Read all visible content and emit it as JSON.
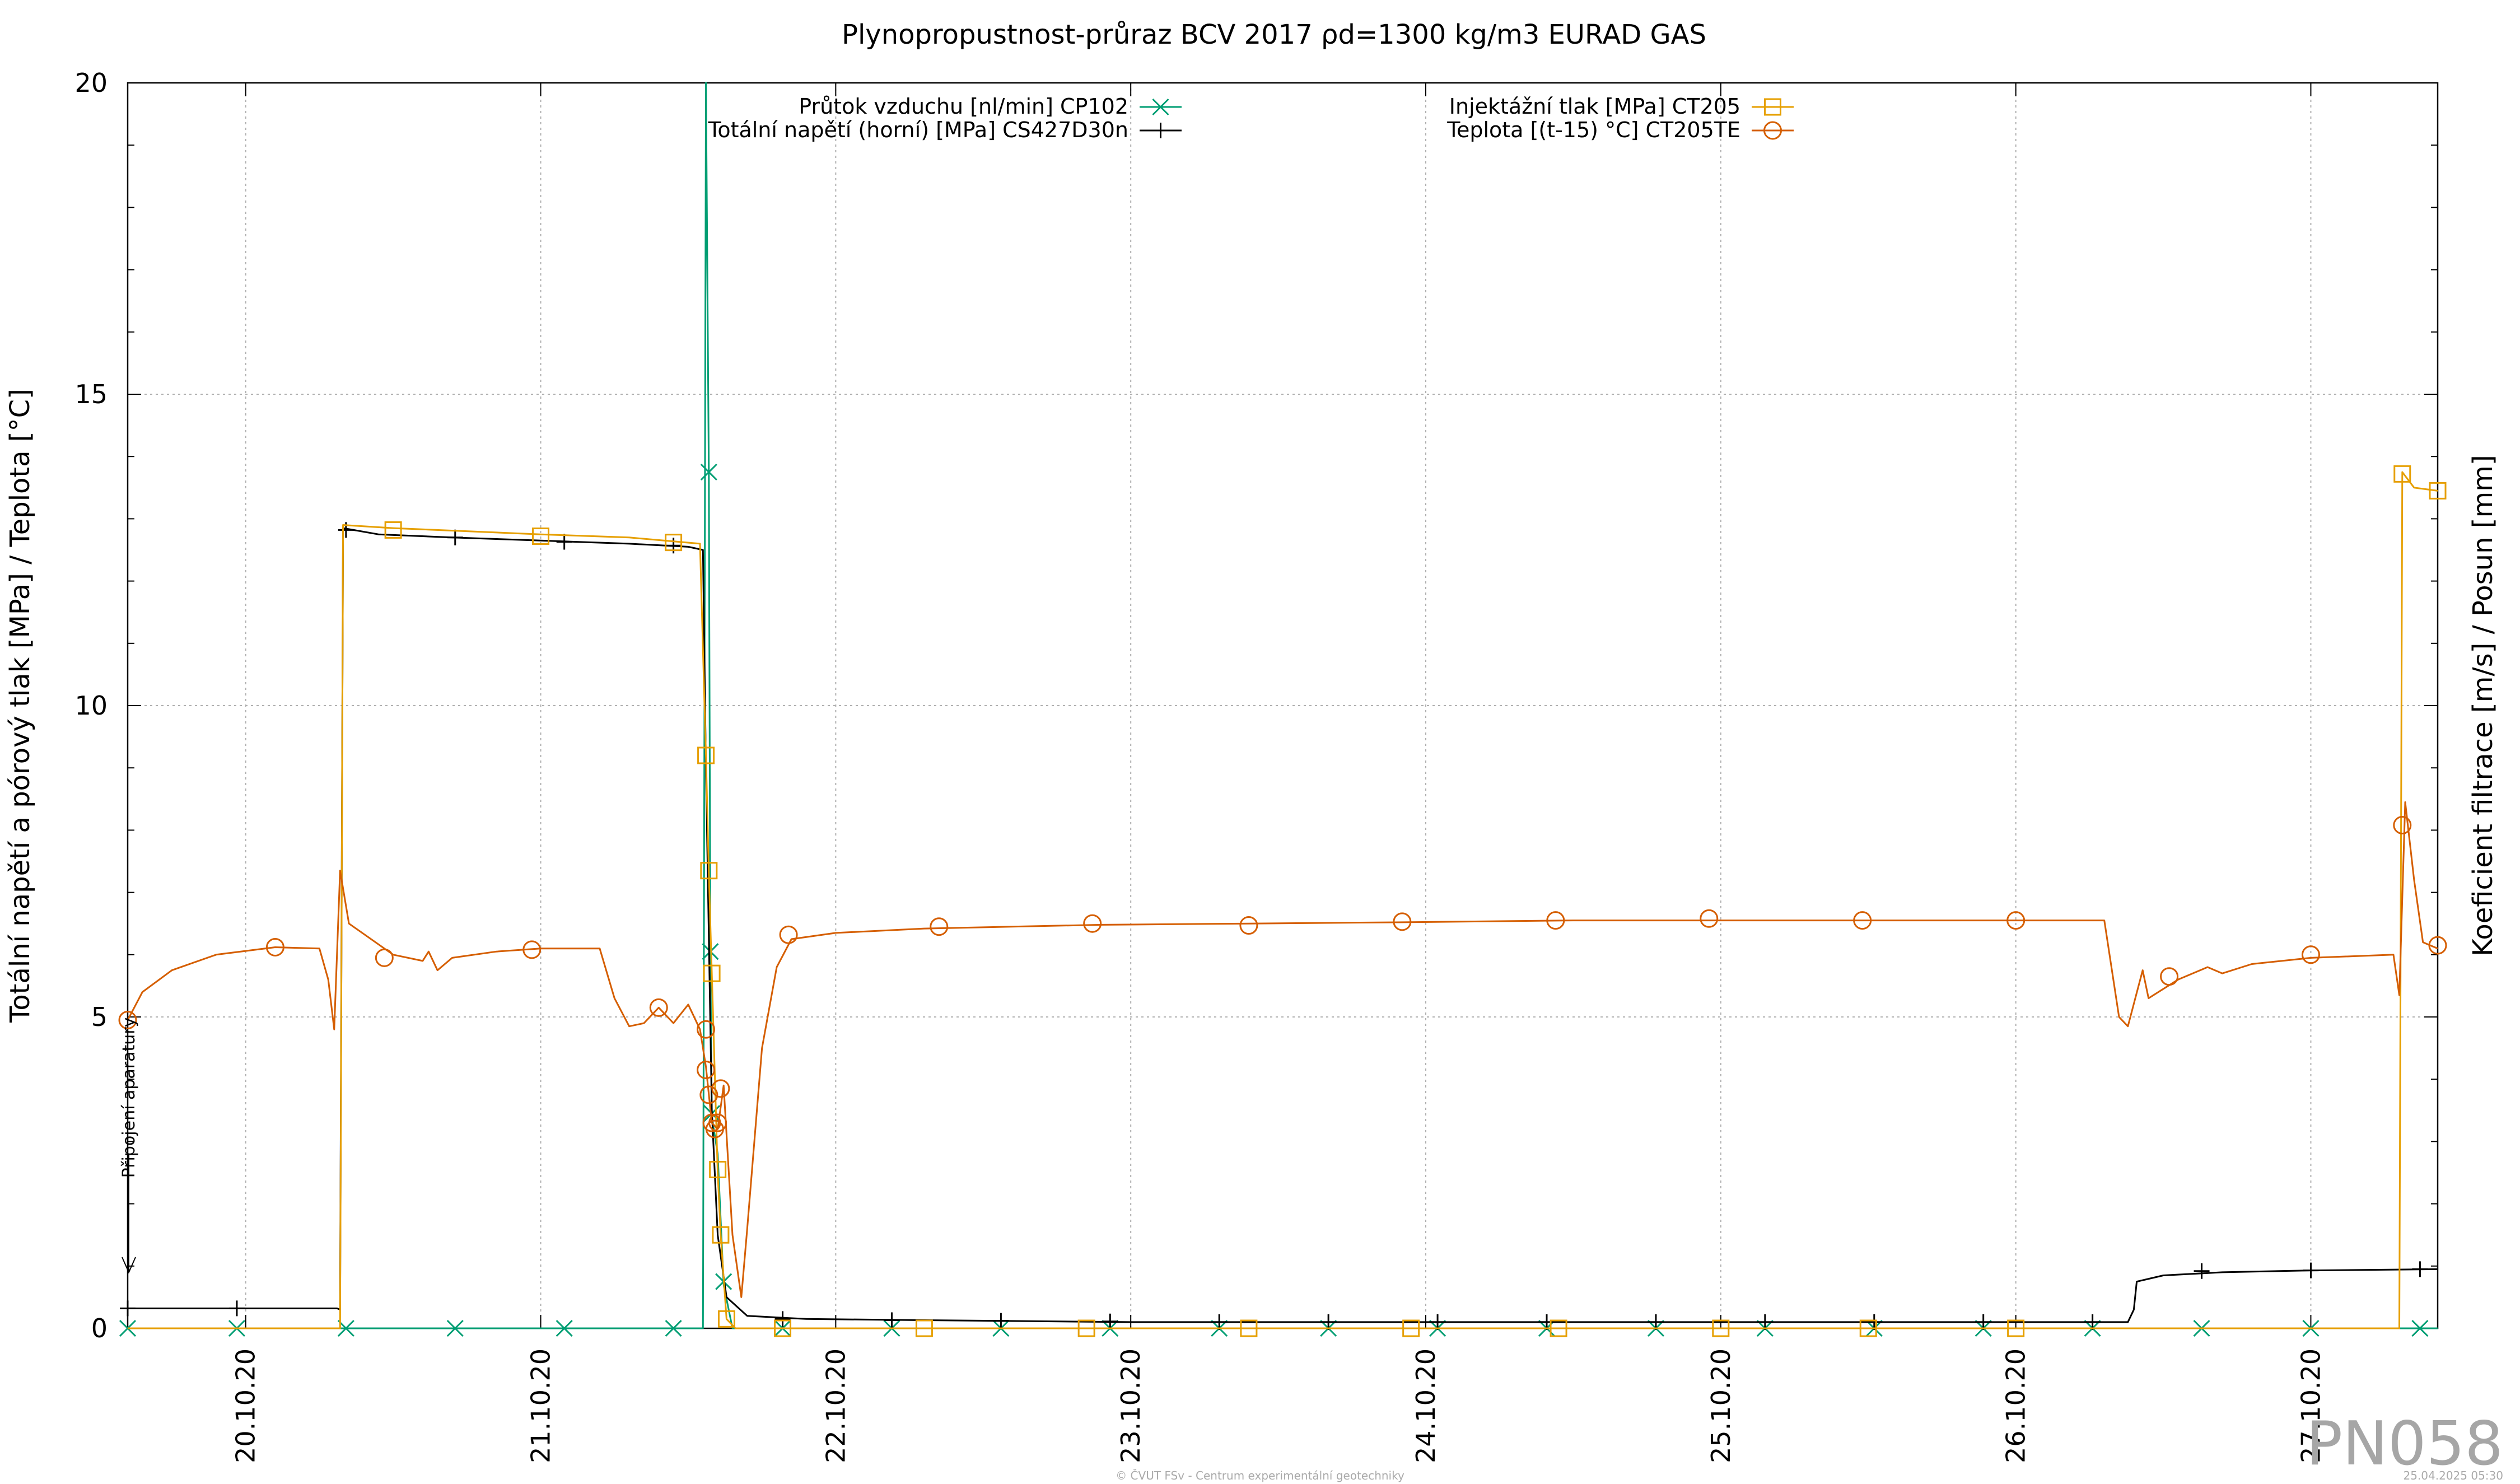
{
  "chart_data": {
    "type": "line",
    "title": "Plynopropustnost-průraz BCV 2017 ρd=1300 kg/m3 EURAD GAS",
    "ylabel": "Totální napětí a pórový tlak [MPa] / Teplota [°C]",
    "y2label": "Koeficient filtrace [m/s] / Posun [mm]",
    "ylim": [
      0,
      20
    ],
    "yticks": [
      "0",
      "5",
      "10",
      "15",
      "20"
    ],
    "xlim": [
      19.6,
      27.43
    ],
    "xticks": [
      {
        "x": 20.0,
        "label": "20.10.20"
      },
      {
        "x": 21.0,
        "label": "21.10.20"
      },
      {
        "x": 22.0,
        "label": "22.10.20"
      },
      {
        "x": 23.0,
        "label": "23.10.20"
      },
      {
        "x": 24.0,
        "label": "24.10.20"
      },
      {
        "x": 25.0,
        "label": "25.10.20"
      },
      {
        "x": 26.0,
        "label": "26.10.20"
      },
      {
        "x": 27.0,
        "label": "27.10.20"
      }
    ],
    "grid": true,
    "legend_position": "top",
    "annotation": "Připojení aparatury",
    "series": [
      {
        "name": "Průtok vzduchu [nl/min] CP102",
        "color": "#009e73",
        "marker": "x",
        "points": [
          [
            19.6,
            0
          ],
          [
            19.97,
            0
          ],
          [
            20.34,
            0
          ],
          [
            20.71,
            0
          ],
          [
            21.08,
            0
          ],
          [
            21.45,
            0
          ],
          [
            21.55,
            0
          ],
          [
            21.56,
            20
          ],
          [
            21.57,
            13.7
          ],
          [
            21.575,
            6.0
          ],
          [
            21.58,
            3.4
          ],
          [
            21.6,
            2.8
          ],
          [
            21.62,
            0.7
          ],
          [
            21.65,
            0
          ],
          [
            21.82,
            0
          ],
          [
            22.19,
            0
          ],
          [
            22.56,
            0
          ],
          [
            22.93,
            0
          ],
          [
            23.3,
            0
          ],
          [
            23.67,
            0
          ],
          [
            24.04,
            0
          ],
          [
            24.41,
            0
          ],
          [
            24.78,
            0
          ],
          [
            25.15,
            0
          ],
          [
            25.52,
            0
          ],
          [
            25.89,
            0
          ],
          [
            26.26,
            0
          ],
          [
            26.63,
            0
          ],
          [
            27.0,
            0
          ],
          [
            27.37,
            0
          ],
          [
            27.43,
            0
          ]
        ],
        "marker_points": [
          [
            19.6,
            0
          ],
          [
            19.97,
            0
          ],
          [
            20.34,
            0
          ],
          [
            20.71,
            0
          ],
          [
            21.08,
            0
          ],
          [
            21.45,
            0
          ],
          [
            21.57,
            13.75
          ],
          [
            21.575,
            6.05
          ],
          [
            21.58,
            3.45
          ],
          [
            21.62,
            0.75
          ],
          [
            21.82,
            0
          ],
          [
            22.19,
            0
          ],
          [
            22.56,
            0
          ],
          [
            22.93,
            0
          ],
          [
            23.3,
            0
          ],
          [
            23.67,
            0
          ],
          [
            24.04,
            0
          ],
          [
            24.41,
            0
          ],
          [
            24.78,
            0
          ],
          [
            25.15,
            0
          ],
          [
            25.52,
            0
          ],
          [
            25.89,
            0
          ],
          [
            26.26,
            0
          ],
          [
            26.63,
            0
          ],
          [
            27.0,
            0
          ],
          [
            27.37,
            0
          ]
        ]
      },
      {
        "name": "Totální napětí (horní) [MPa] CS427D30n",
        "color": "#000000",
        "marker": "+",
        "points": [
          [
            19.6,
            0.32
          ],
          [
            20.31,
            0.32
          ],
          [
            20.32,
            0.3
          ],
          [
            20.33,
            12.85
          ],
          [
            20.45,
            12.75
          ],
          [
            20.7,
            12.7
          ],
          [
            21.0,
            12.65
          ],
          [
            21.3,
            12.6
          ],
          [
            21.5,
            12.55
          ],
          [
            21.55,
            12.5
          ],
          [
            21.56,
            9.0
          ],
          [
            21.58,
            3.5
          ],
          [
            21.6,
            1.5
          ],
          [
            21.63,
            0.5
          ],
          [
            21.7,
            0.2
          ],
          [
            21.9,
            0.15
          ],
          [
            22.3,
            0.13
          ],
          [
            23.0,
            0.1
          ],
          [
            24.0,
            0.1
          ],
          [
            25.0,
            0.1
          ],
          [
            26.0,
            0.1
          ],
          [
            26.38,
            0.1
          ],
          [
            26.4,
            0.3
          ],
          [
            26.41,
            0.75
          ],
          [
            26.5,
            0.85
          ],
          [
            26.7,
            0.9
          ],
          [
            27.0,
            0.93
          ],
          [
            27.43,
            0.95
          ]
        ],
        "marker_points": [
          [
            19.6,
            0.32
          ],
          [
            19.97,
            0.32
          ],
          [
            20.34,
            12.82
          ],
          [
            20.71,
            12.7
          ],
          [
            21.08,
            12.63
          ],
          [
            21.45,
            12.57
          ],
          [
            21.82,
            0.15
          ],
          [
            22.19,
            0.13
          ],
          [
            22.56,
            0.12
          ],
          [
            22.93,
            0.11
          ],
          [
            23.3,
            0.1
          ],
          [
            23.67,
            0.1
          ],
          [
            24.04,
            0.1
          ],
          [
            24.41,
            0.1
          ],
          [
            24.78,
            0.1
          ],
          [
            25.15,
            0.1
          ],
          [
            25.52,
            0.1
          ],
          [
            25.89,
            0.1
          ],
          [
            26.26,
            0.1
          ],
          [
            26.63,
            0.92
          ],
          [
            27.0,
            0.93
          ],
          [
            27.37,
            0.95
          ]
        ]
      },
      {
        "name": "Injektážní tlak [MPa] CT205",
        "color": "#e69f00",
        "marker": "square",
        "points": [
          [
            19.6,
            0
          ],
          [
            20.32,
            0
          ],
          [
            20.33,
            12.9
          ],
          [
            20.5,
            12.85
          ],
          [
            21.0,
            12.75
          ],
          [
            21.3,
            12.7
          ],
          [
            21.54,
            12.6
          ],
          [
            21.56,
            9.2
          ],
          [
            21.57,
            7.3
          ],
          [
            21.58,
            5.7
          ],
          [
            21.6,
            2.5
          ],
          [
            21.61,
            1.5
          ],
          [
            21.63,
            0.15
          ],
          [
            21.66,
            0
          ],
          [
            27.3,
            0
          ],
          [
            27.31,
            13.75
          ],
          [
            27.35,
            13.5
          ],
          [
            27.43,
            13.45
          ]
        ],
        "marker_points": [
          [
            20.5,
            12.82
          ],
          [
            21.0,
            12.72
          ],
          [
            21.45,
            12.62
          ],
          [
            21.56,
            9.2
          ],
          [
            21.57,
            7.35
          ],
          [
            21.58,
            5.7
          ],
          [
            21.6,
            2.55
          ],
          [
            21.61,
            1.5
          ],
          [
            21.63,
            0.15
          ],
          [
            21.82,
            0
          ],
          [
            22.3,
            0
          ],
          [
            22.85,
            0
          ],
          [
            23.4,
            0
          ],
          [
            23.95,
            0
          ],
          [
            24.45,
            0
          ],
          [
            25.0,
            0
          ],
          [
            25.5,
            0
          ],
          [
            26.0,
            0
          ],
          [
            27.31,
            13.72
          ],
          [
            27.43,
            13.45
          ]
        ]
      },
      {
        "name": "Teplota [(t-15) °C] CT205TE",
        "color": "#d55e00",
        "marker": "circle",
        "points": [
          [
            19.6,
            4.95
          ],
          [
            19.65,
            5.4
          ],
          [
            19.75,
            5.75
          ],
          [
            19.9,
            6.0
          ],
          [
            20.1,
            6.12
          ],
          [
            20.25,
            6.1
          ],
          [
            20.28,
            5.6
          ],
          [
            20.3,
            4.8
          ],
          [
            20.32,
            7.35
          ],
          [
            20.35,
            6.5
          ],
          [
            20.5,
            6.0
          ],
          [
            20.6,
            5.9
          ],
          [
            20.62,
            6.05
          ],
          [
            20.65,
            5.75
          ],
          [
            20.7,
            5.95
          ],
          [
            20.85,
            6.05
          ],
          [
            21.0,
            6.1
          ],
          [
            21.2,
            6.1
          ],
          [
            21.25,
            5.3
          ],
          [
            21.3,
            4.85
          ],
          [
            21.35,
            4.9
          ],
          [
            21.4,
            5.15
          ],
          [
            21.45,
            4.9
          ],
          [
            21.5,
            5.2
          ],
          [
            21.54,
            4.8
          ],
          [
            21.56,
            4.2
          ],
          [
            21.58,
            3.3
          ],
          [
            21.6,
            3.2
          ],
          [
            21.62,
            3.9
          ],
          [
            21.65,
            1.5
          ],
          [
            21.68,
            0.5
          ],
          [
            21.7,
            1.6
          ],
          [
            21.75,
            4.5
          ],
          [
            21.8,
            5.8
          ],
          [
            21.85,
            6.25
          ],
          [
            22.0,
            6.35
          ],
          [
            22.3,
            6.42
          ],
          [
            22.9,
            6.48
          ],
          [
            23.4,
            6.5
          ],
          [
            23.9,
            6.52
          ],
          [
            24.5,
            6.55
          ],
          [
            25.0,
            6.55
          ],
          [
            25.5,
            6.55
          ],
          [
            26.0,
            6.55
          ],
          [
            26.3,
            6.55
          ],
          [
            26.35,
            5.0
          ],
          [
            26.38,
            4.85
          ],
          [
            26.43,
            5.75
          ],
          [
            26.45,
            5.3
          ],
          [
            26.55,
            5.6
          ],
          [
            26.65,
            5.8
          ],
          [
            26.7,
            5.7
          ],
          [
            26.8,
            5.85
          ],
          [
            27.0,
            5.95
          ],
          [
            27.28,
            6.0
          ],
          [
            27.3,
            5.35
          ],
          [
            27.32,
            8.45
          ],
          [
            27.35,
            7.2
          ],
          [
            27.38,
            6.2
          ],
          [
            27.43,
            6.1
          ]
        ],
        "marker_points": [
          [
            19.6,
            4.95
          ],
          [
            20.1,
            6.12
          ],
          [
            20.47,
            5.95
          ],
          [
            20.97,
            6.08
          ],
          [
            21.4,
            5.15
          ],
          [
            21.56,
            4.8
          ],
          [
            21.56,
            4.15
          ],
          [
            21.57,
            3.75
          ],
          [
            21.58,
            3.3
          ],
          [
            21.59,
            3.2
          ],
          [
            21.6,
            3.3
          ],
          [
            21.61,
            3.85
          ],
          [
            21.84,
            6.32
          ],
          [
            22.35,
            6.45
          ],
          [
            22.87,
            6.5
          ],
          [
            23.4,
            6.47
          ],
          [
            23.92,
            6.53
          ],
          [
            24.44,
            6.55
          ],
          [
            24.96,
            6.58
          ],
          [
            25.48,
            6.55
          ],
          [
            26.0,
            6.55
          ],
          [
            26.52,
            5.65
          ],
          [
            27.0,
            6.0
          ],
          [
            27.31,
            8.08
          ],
          [
            27.43,
            6.15
          ]
        ]
      }
    ]
  },
  "watermark": "PN058",
  "footer_left": "© ČVUT FSv - Centrum experimentální geotechniky",
  "footer_right": "25.04.2025 05:30"
}
